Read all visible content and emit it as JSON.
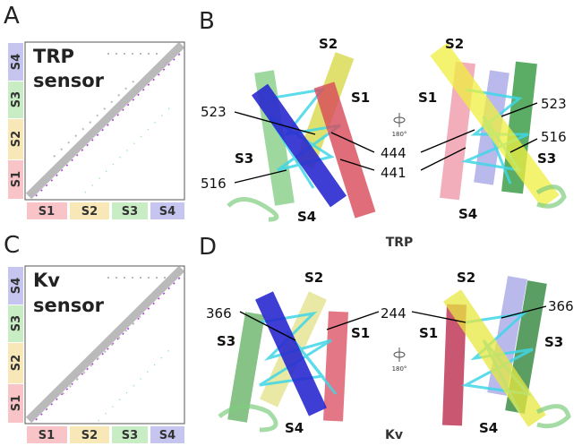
{
  "contact_maps": [
    {
      "panel": "A",
      "title": [
        "TRP",
        "sensor"
      ],
      "segments": [
        "S1",
        "S2",
        "S3",
        "S4"
      ]
    },
    {
      "panel": "C",
      "title": [
        "Kv",
        "sensor"
      ],
      "segments": [
        "S1",
        "S2",
        "S3",
        "S4"
      ]
    }
  ],
  "structures": [
    {
      "panel": "B",
      "caption": "TRP",
      "rotation": "180°",
      "left": {
        "helices": [
          "S2",
          "S1",
          "S3",
          "S4"
        ],
        "residues": [
          "523",
          "516"
        ]
      },
      "center_residues": [
        "444",
        "441"
      ],
      "right": {
        "helices": [
          "S2",
          "S1",
          "S3",
          "S4"
        ],
        "residues": [
          "523",
          "516"
        ]
      }
    },
    {
      "panel": "D",
      "caption": "Kv",
      "rotation": "180°",
      "left": {
        "helices": [
          "S2",
          "S1",
          "S3",
          "S4"
        ],
        "residues": [
          "366"
        ]
      },
      "center_residues": [
        "244"
      ],
      "right": {
        "helices": [
          "S2",
          "S1",
          "S3",
          "S4"
        ],
        "residues": [
          "366"
        ]
      }
    }
  ]
}
